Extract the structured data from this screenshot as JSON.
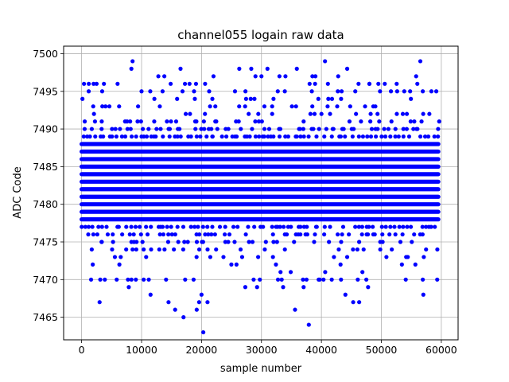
{
  "chart_data": {
    "type": "scatter",
    "title": "channel055 logain raw data",
    "xlabel": "sample number",
    "ylabel": "ADC Code",
    "xlim": [
      -3000,
      62800
    ],
    "ylim": [
      7462,
      7501
    ],
    "xticks": [
      0,
      10000,
      20000,
      30000,
      40000,
      50000,
      60000
    ],
    "yticks": [
      7465,
      7470,
      7475,
      7480,
      7485,
      7490,
      7495,
      7500
    ],
    "grid": true,
    "marker_color": "#0000ff",
    "n_samples": 59500,
    "series": [
      {
        "dense_levels_min": 7471,
        "dense_levels_max": 7494,
        "sparse_points": [
          {
            "x": 3000,
            "y": 7467
          },
          {
            "x": 8500,
            "y": 7499
          },
          {
            "x": 8300,
            "y": 7498
          },
          {
            "x": 14500,
            "y": 7467
          },
          {
            "x": 15600,
            "y": 7466
          },
          {
            "x": 16500,
            "y": 7498
          },
          {
            "x": 17000,
            "y": 7465
          },
          {
            "x": 19200,
            "y": 7466
          },
          {
            "x": 19600,
            "y": 7467
          },
          {
            "x": 20000,
            "y": 7468
          },
          {
            "x": 20300,
            "y": 7463
          },
          {
            "x": 21000,
            "y": 7467
          },
          {
            "x": 26300,
            "y": 7498
          },
          {
            "x": 28300,
            "y": 7498
          },
          {
            "x": 31000,
            "y": 7498
          },
          {
            "x": 35600,
            "y": 7466
          },
          {
            "x": 35900,
            "y": 7498
          },
          {
            "x": 37900,
            "y": 7464
          },
          {
            "x": 40600,
            "y": 7499
          },
          {
            "x": 44000,
            "y": 7468
          },
          {
            "x": 44300,
            "y": 7498
          },
          {
            "x": 45300,
            "y": 7467
          },
          {
            "x": 46300,
            "y": 7467
          },
          {
            "x": 56500,
            "y": 7499
          },
          {
            "x": 57000,
            "y": 7468
          },
          {
            "x": 55800,
            "y": 7497
          },
          {
            "x": 11500,
            "y": 7468
          },
          {
            "x": 12800,
            "y": 7497
          },
          {
            "x": 13800,
            "y": 7497
          },
          {
            "x": 18000,
            "y": 7496
          },
          {
            "x": 6000,
            "y": 7496
          },
          {
            "x": 400,
            "y": 7496
          },
          {
            "x": 1200,
            "y": 7496
          },
          {
            "x": 2000,
            "y": 7496
          },
          {
            "x": 2500,
            "y": 7496
          },
          {
            "x": 20600,
            "y": 7496
          },
          {
            "x": 22000,
            "y": 7497
          },
          {
            "x": 29000,
            "y": 7497
          },
          {
            "x": 30000,
            "y": 7497
          },
          {
            "x": 33000,
            "y": 7497
          },
          {
            "x": 34000,
            "y": 7497
          },
          {
            "x": 38500,
            "y": 7497
          },
          {
            "x": 39000,
            "y": 7497
          },
          {
            "x": 42800,
            "y": 7497
          },
          {
            "x": 48000,
            "y": 7496
          },
          {
            "x": 49500,
            "y": 7496
          },
          {
            "x": 56000,
            "y": 7496
          }
        ]
      }
    ]
  }
}
